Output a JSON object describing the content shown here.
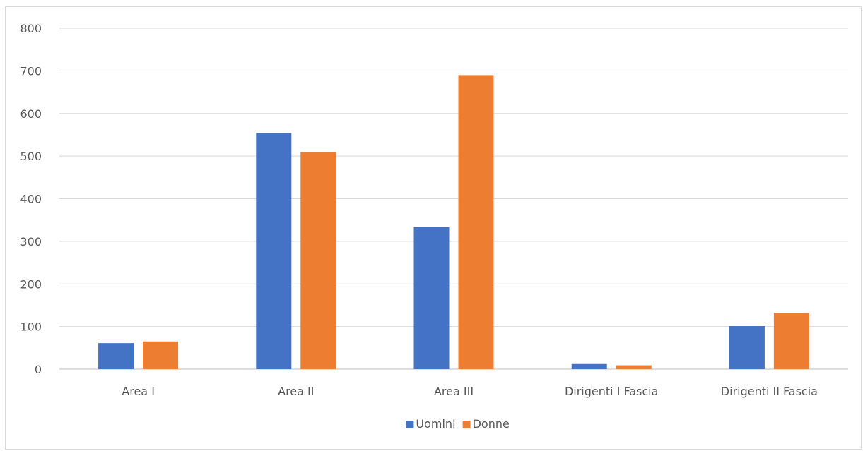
{
  "chart_data": {
    "type": "bar",
    "title": "",
    "xlabel": "",
    "ylabel": "",
    "categories": [
      "Area I",
      "Area II",
      "Area III",
      "Dirigenti I Fascia",
      "Dirigenti II Fascia"
    ],
    "series": [
      {
        "name": "Uomini",
        "color": "#4472C4",
        "values": [
          61,
          554,
          333,
          12,
          101
        ]
      },
      {
        "name": "Donne",
        "color": "#ED7D31",
        "values": [
          65,
          509,
          690,
          9,
          132
        ]
      }
    ],
    "ylim": [
      0,
      800
    ],
    "yticks": [
      "0",
      "100",
      "200",
      "300",
      "400",
      "500",
      "600",
      "700",
      "800"
    ],
    "grid": true,
    "legend": "bottom-center"
  }
}
